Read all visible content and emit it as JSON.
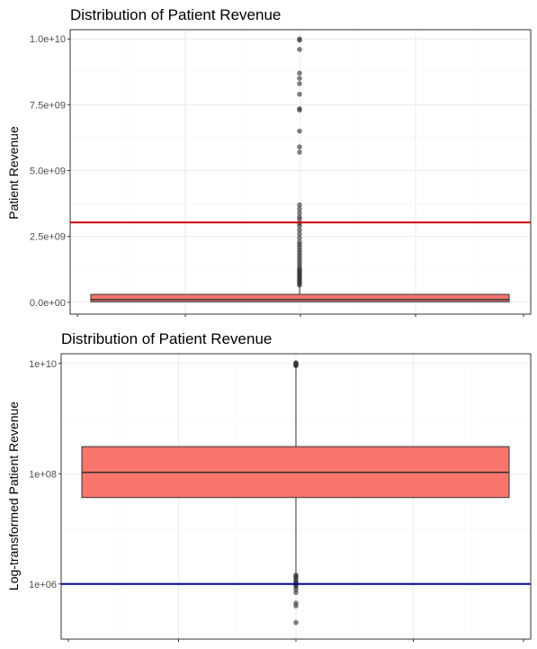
{
  "chart_data": [
    {
      "type": "boxplot",
      "title": "Distribution of Patient Revenue",
      "xlabel": "",
      "ylabel": "Patient Revenue",
      "scale": "linear",
      "ylim": [
        -450000000,
        10350000000
      ],
      "yticks": [
        0,
        2500000000,
        5000000000,
        7500000000,
        10000000000
      ],
      "ytick_labels": [
        "0.0e+00",
        "2.5e+09",
        "5.0e+09",
        "7.5e+09",
        "1.0e+10"
      ],
      "grid": true,
      "box": {
        "lower_whisker": 1000000,
        "q1": 20000000,
        "median": 100000000,
        "q3": 300000000,
        "upper_whisker": 620000000,
        "fill": "#F8766D"
      },
      "reference_line": {
        "value": 3030000000,
        "color": "#CC0000"
      },
      "outliers": [
        650000000,
        700000000,
        750000000,
        800000000,
        850000000,
        900000000,
        950000000,
        1000000000,
        1050000000,
        1100000000,
        1150000000,
        1200000000,
        1250000000,
        1300000000,
        1400000000,
        1500000000,
        1600000000,
        1700000000,
        1800000000,
        1900000000,
        2000000000,
        2100000000,
        2200000000,
        2300000000,
        2450000000,
        2600000000,
        2750000000,
        2900000000,
        3000000000,
        3150000000,
        3250000000,
        3400000000,
        3550000000,
        3700000000,
        5700000000,
        5900000000,
        6500000000,
        7300000000,
        7350000000,
        7900000000,
        8300000000,
        8500000000,
        8700000000,
        9600000000,
        9950000000,
        10000000000
      ]
    },
    {
      "type": "boxplot",
      "title": "Distribution of Patient Revenue",
      "xlabel": "",
      "ylabel": "Log-transformed Patient Revenue",
      "scale": "log",
      "ylim": [
        100000,
        15000000000
      ],
      "yticks": [
        1000000,
        100000000,
        10000000000
      ],
      "ytick_labels": [
        "1e+06",
        "1e+08",
        "1e+10"
      ],
      "grid": true,
      "box": {
        "lower_whisker": 1500000,
        "q1": 37000000,
        "median": 106000000,
        "q3": 310000000,
        "upper_whisker": 9000000000,
        "fill": "#F8766D"
      },
      "reference_line": {
        "value": 1000000,
        "color": "#000099"
      },
      "outliers": [
        1100000,
        1200000,
        1300000,
        1380000,
        1450000,
        900000,
        950000,
        1000000,
        1050000,
        800000,
        700000,
        450000,
        400000,
        200000,
        9100000000,
        9300000000,
        9500000000,
        9700000000,
        9900000000,
        10100000000,
        10300000000
      ]
    }
  ]
}
